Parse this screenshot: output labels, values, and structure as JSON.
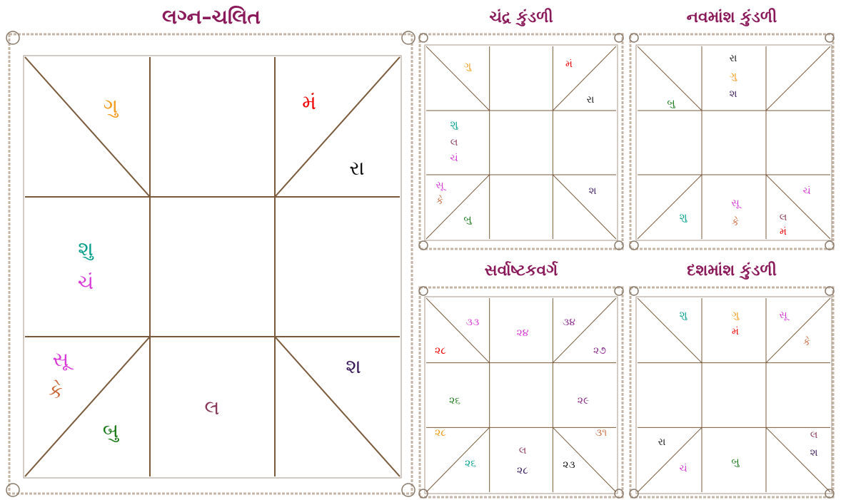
{
  "charts": [
    {
      "title": "લગ્ન–ચલિત",
      "labels": [
        "ગુ",
        "મં",
        "રા",
        "શુ",
        "ચં",
        "સૂ",
        "કે",
        "બુ",
        "લ",
        "શ"
      ]
    },
    {
      "title": "ચંદ્ર કુંડળી",
      "labels": [
        "ગુ",
        "મં",
        "રા",
        "શુ",
        "લ",
        "ચં",
        "સૂ",
        "કે",
        "બુ",
        "શ"
      ]
    },
    {
      "title": "નવમાંશ કુંડળી",
      "labels": [
        "રા",
        "ગુ",
        "શ",
        "બુ",
        "ચં",
        "સૂ",
        "કે",
        "શુ",
        "લ",
        "મં"
      ]
    },
    {
      "title": "સર્વાષ્ટકવર્ગ",
      "labels": [
        "૩૩",
        "૨૪",
        "૩૪",
        "૨૮",
        "૨૭",
        "૨૬",
        "૨૯",
        "૨૮",
        "૩૧",
        "૨૬",
        "લ",
        "૨૮",
        "૨૩"
      ]
    },
    {
      "title": "દશમાંશ કુંડળી",
      "labels": [
        "શુ",
        "ગુ",
        "મં",
        "સૂ",
        "કે",
        "રા",
        "ચં",
        "બુ",
        "લ",
        "શ"
      ]
    }
  ]
}
